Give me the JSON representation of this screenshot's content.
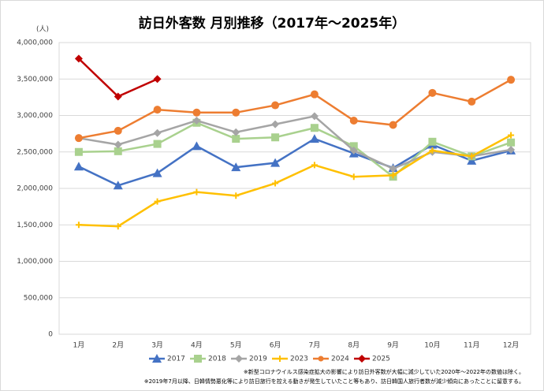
{
  "chart_data": {
    "type": "line",
    "title": "訪日外客数 月別推移（2017年～2025年）",
    "y_label": "(人)",
    "categories": [
      "1月",
      "2月",
      "3月",
      "4月",
      "5月",
      "6月",
      "7月",
      "8月",
      "9月",
      "10月",
      "11月",
      "12月"
    ],
    "series": [
      {
        "name": "2017",
        "color": "#4472c4",
        "marker": "triangle",
        "values": [
          2300000,
          2040000,
          2210000,
          2580000,
          2290000,
          2350000,
          2680000,
          2480000,
          2280000,
          2600000,
          2380000,
          2520000
        ]
      },
      {
        "name": "2018",
        "color": "#a9d18e",
        "marker": "square",
        "values": [
          2500000,
          2510000,
          2610000,
          2900000,
          2680000,
          2700000,
          2830000,
          2580000,
          2160000,
          2640000,
          2440000,
          2630000
        ]
      },
      {
        "name": "2019",
        "color": "#a5a5a5",
        "marker": "diamond",
        "values": [
          2690000,
          2600000,
          2760000,
          2930000,
          2770000,
          2880000,
          2990000,
          2520000,
          2270000,
          2500000,
          2440000,
          2530000
        ]
      },
      {
        "name": "2023",
        "color": "#ffc000",
        "marker": "plus",
        "values": [
          1500000,
          1480000,
          1820000,
          1950000,
          1900000,
          2070000,
          2320000,
          2160000,
          2180000,
          2520000,
          2440000,
          2730000
        ]
      },
      {
        "name": "2024",
        "color": "#ed7d31",
        "marker": "circle",
        "values": [
          2690000,
          2790000,
          3080000,
          3040000,
          3040000,
          3140000,
          3290000,
          2930000,
          2870000,
          3310000,
          3190000,
          3490000
        ]
      },
      {
        "name": "2025",
        "color": "#c00000",
        "marker": "diamond",
        "values": [
          3780000,
          3260000,
          3500000,
          null,
          null,
          null,
          null,
          null,
          null,
          null,
          null,
          null
        ]
      }
    ],
    "ylim": [
      0,
      4000000
    ],
    "yticks": [
      0,
      {
        "value": 500000,
        "label": "500,000"
      },
      {
        "value": 1000000,
        "label": "1,000,000"
      },
      {
        "value": 1500000,
        "label": "1,500,000"
      },
      {
        "value": 2000000,
        "label": "2,000,000"
      },
      {
        "value": 2500000,
        "label": "2,500,000"
      },
      {
        "value": 3000000,
        "label": "3,000,000"
      },
      {
        "value": 3500000,
        "label": "3,500,000"
      },
      {
        "value": 4000000,
        "label": "4,000,000"
      }
    ],
    "grid": true,
    "legend": "bottom",
    "notes": [
      "※新型コロナウイルス感染症拡大の影響により訪日外客数が大幅に減少していた2020年～2022年の数値は除く。",
      "※2019年7月以降、日韓情勢悪化等により訪日旅行を控える動きが発生していたこと等もあり、訪日韓国人旅行者数が減少傾向にあったことに留意する。"
    ]
  }
}
